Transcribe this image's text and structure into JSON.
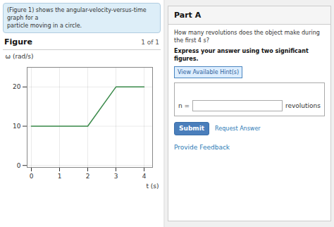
{
  "chart_data": {
    "type": "line",
    "x": [
      0,
      2,
      3,
      4
    ],
    "values": [
      10,
      10,
      20,
      20
    ],
    "color": "#3a8a4a",
    "xlabel": "t (s)",
    "ylabel": "ω (rad/s)",
    "xlim": [
      -0.15,
      4.3
    ],
    "ylim": [
      -0.5,
      25
    ],
    "xticks": [
      0,
      1,
      2,
      3,
      4
    ],
    "yticks": [
      0,
      10,
      20
    ],
    "grid": true,
    "annotations": [
      "(Figure 1) shows the angular-velocity-versus-time graph for a",
      "particle moving in a circle.",
      "Figure",
      "1 of 1",
      "Part A",
      "How many revolutions does the object make during the first 4 s?",
      "Express your answer using two significant figures.",
      "View Available Hint(s)",
      "n =",
      "revolutions",
      "Submit",
      "Request Answer",
      "Provide Feedback"
    ]
  }
}
